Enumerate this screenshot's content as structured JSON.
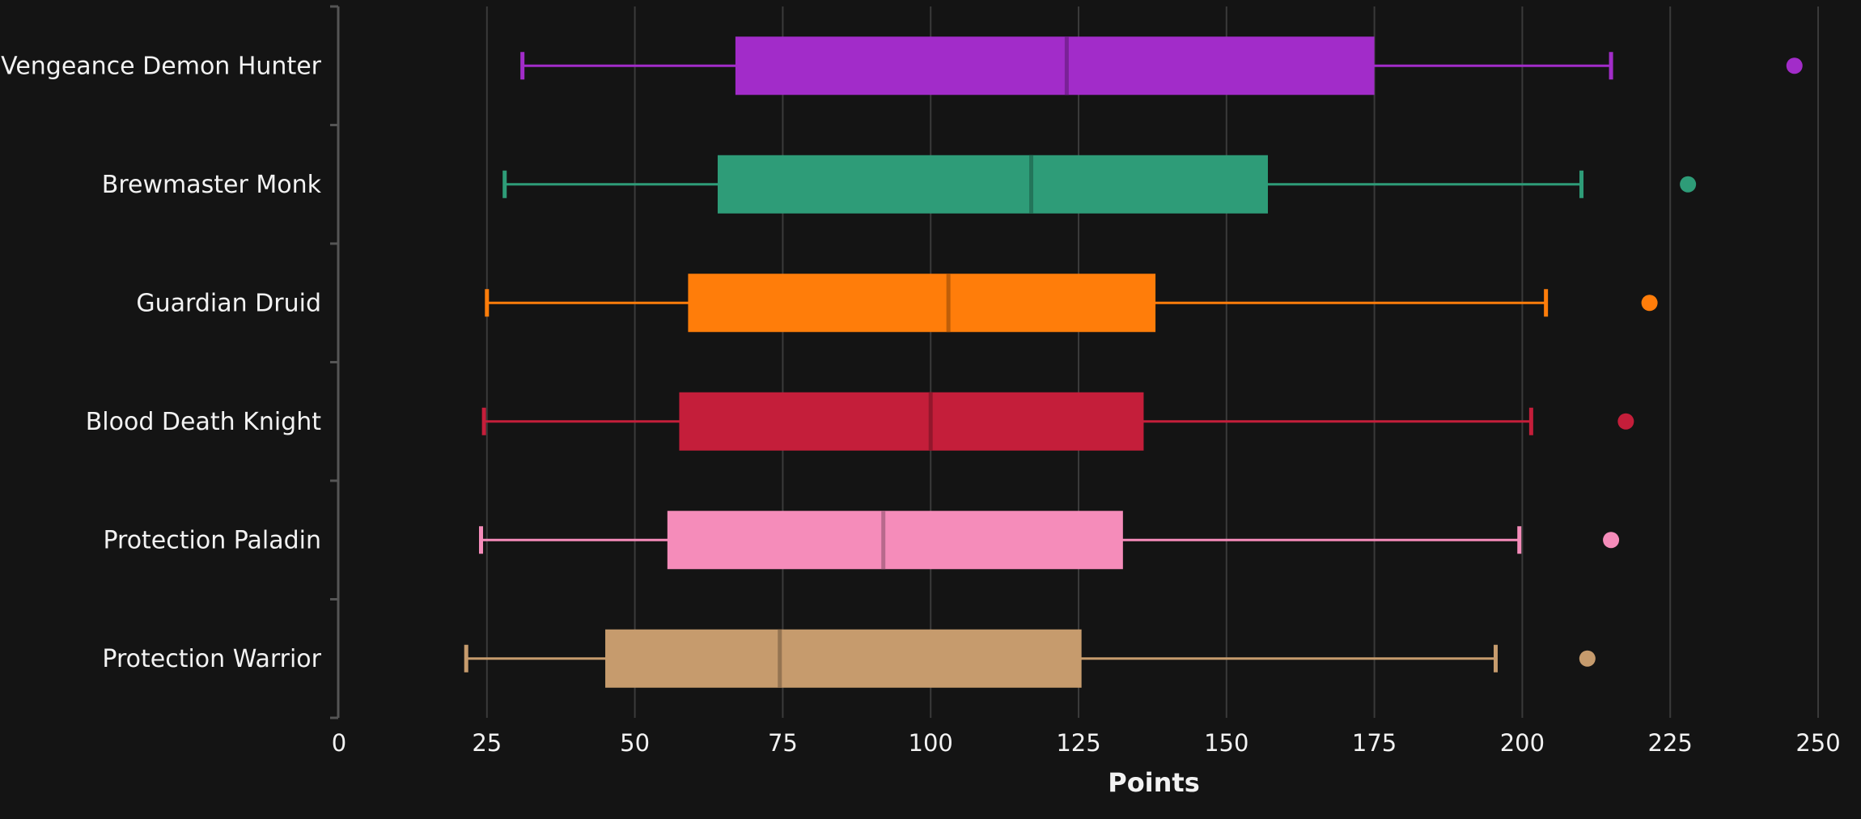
{
  "chart_data": {
    "type": "box",
    "orientation": "horizontal",
    "title": "",
    "xlabel": "Points",
    "ylabel": "",
    "xlim": [
      0,
      250
    ],
    "xticks": [
      0,
      25,
      50,
      75,
      100,
      125,
      150,
      175,
      200,
      225,
      250
    ],
    "grid": "vertical",
    "legend": "none",
    "series": [
      {
        "label": "Vengeance Demon Hunter",
        "color": "#a22cc9",
        "whisker_low": 31,
        "q1": 67,
        "median": 123,
        "q3": 175,
        "whisker_high": 215,
        "outliers": [
          246
        ]
      },
      {
        "label": "Brewmaster Monk",
        "color": "#2e9c78",
        "whisker_low": 28,
        "q1": 64,
        "median": 117,
        "q3": 157,
        "whisker_high": 210,
        "outliers": [
          228
        ]
      },
      {
        "label": "Guardian Druid",
        "color": "#ff7d0a",
        "whisker_low": 25,
        "q1": 59,
        "median": 103,
        "q3": 138,
        "whisker_high": 204,
        "outliers": [
          221.5
        ]
      },
      {
        "label": "Blood Death Knight",
        "color": "#c41e3a",
        "whisker_low": 24.5,
        "q1": 57.5,
        "median": 100,
        "q3": 136,
        "whisker_high": 201.5,
        "outliers": [
          217.5
        ]
      },
      {
        "label": "Protection Paladin",
        "color": "#f58cba",
        "whisker_low": 24,
        "q1": 55.5,
        "median": 92,
        "q3": 132.5,
        "whisker_high": 199.5,
        "outliers": [
          215
        ]
      },
      {
        "label": "Protection Warrior",
        "color": "#c69b6d",
        "whisker_low": 21.5,
        "q1": 45,
        "median": 74.5,
        "q3": 125.5,
        "whisker_high": 195.5,
        "outliers": [
          211
        ]
      }
    ]
  }
}
